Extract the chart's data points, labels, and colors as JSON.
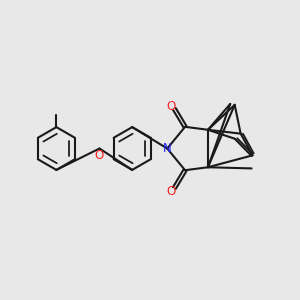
{
  "bg_color": "#e8e8e8",
  "bond_color": "#1a1a1a",
  "N_color": "#2222ff",
  "O_color": "#ff2020",
  "line_width": 1.5,
  "fig_size": [
    3.0,
    3.0
  ],
  "dpi": 100,
  "xlim": [
    0,
    10
  ],
  "ylim": [
    0,
    10
  ]
}
